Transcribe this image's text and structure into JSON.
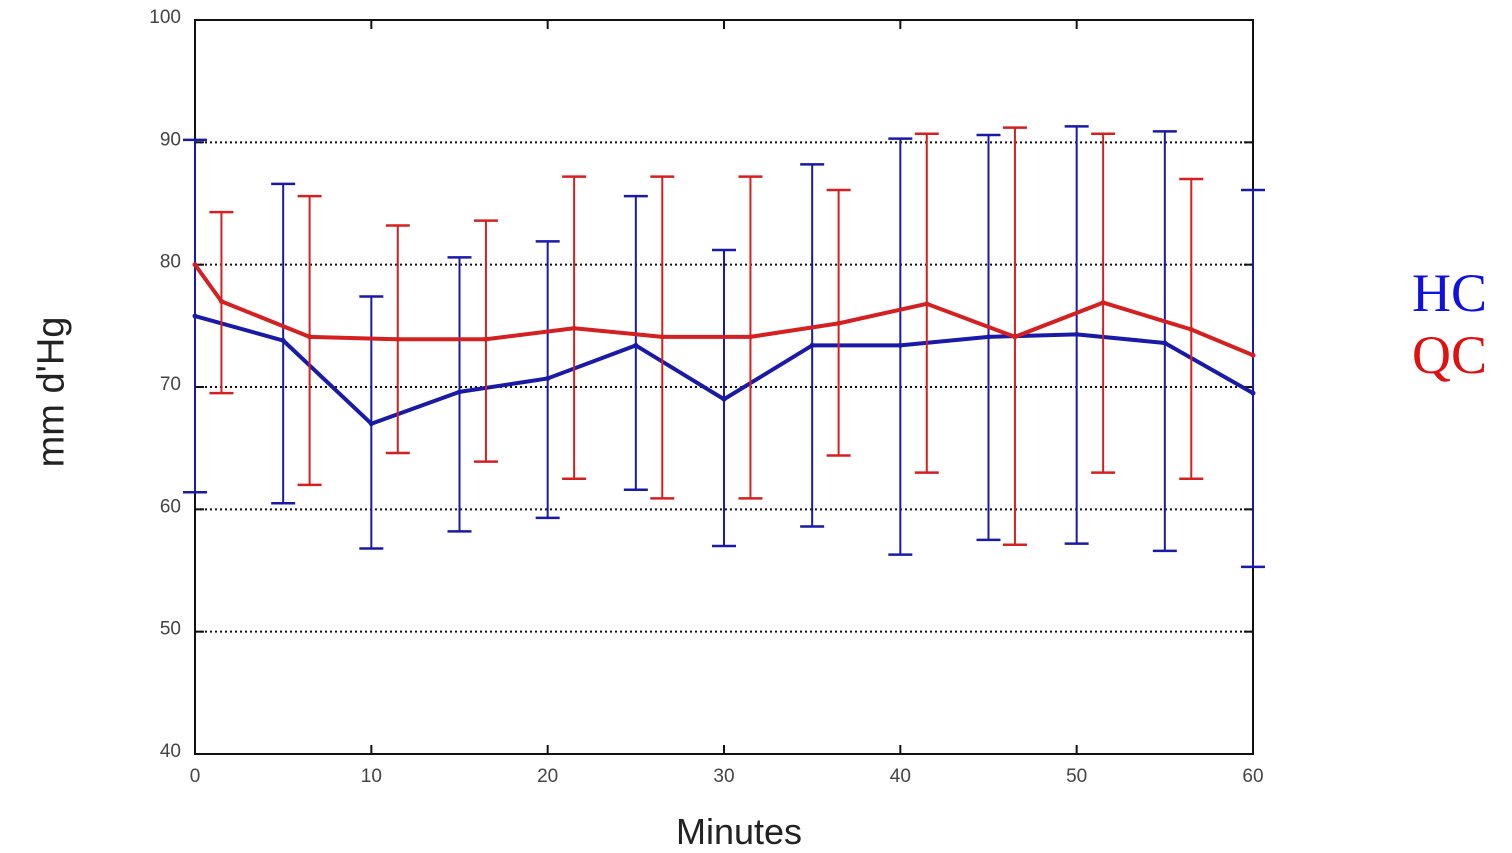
{
  "chart_data": {
    "type": "line",
    "xlabel": "Minutes",
    "ylabel": "mm d'Hg",
    "xlim": [
      0,
      60
    ],
    "ylim": [
      40,
      100
    ],
    "x_ticks": [
      "0",
      "10",
      "20",
      "30",
      "40",
      "50",
      "60"
    ],
    "y_ticks": [
      "40",
      "50",
      "60",
      "70",
      "80",
      "90",
      "100"
    ],
    "grid": "horizontal dotted at 50-90",
    "legend_position": "right",
    "series": [
      {
        "name": "HC",
        "color": "#1a1aa8",
        "x": [
          0,
          5,
          10,
          15,
          20,
          25,
          30,
          35,
          40,
          45,
          50,
          55,
          60
        ],
        "values": [
          75.8,
          73.8,
          67,
          69.6,
          70.7,
          73.4,
          69,
          73.4,
          73.4,
          74.1,
          74.3,
          73.6,
          69.5
        ],
        "error_low": [
          61.4,
          60.5,
          56.8,
          58.2,
          59.3,
          61.6,
          57,
          58.6,
          56.3,
          57.5,
          57.2,
          56.6,
          55.3
        ],
        "error_high": [
          90.2,
          86.6,
          77.4,
          80.6,
          81.9,
          85.6,
          81.2,
          88.2,
          90.3,
          90.6,
          91.3,
          90.9,
          86.1
        ]
      },
      {
        "name": "QC",
        "color": "#d42020",
        "x": [
          0,
          1.5,
          6.5,
          11.5,
          16.5,
          21.5,
          26.5,
          31.5,
          36.5,
          41.5,
          46.5,
          51.5,
          56.5,
          60
        ],
        "values": [
          80,
          77,
          74.1,
          73.9,
          73.9,
          74.8,
          74.1,
          74.1,
          75.2,
          76.8,
          74.1,
          76.9,
          74.7,
          72.6
        ],
        "error_low": [
          null,
          69.5,
          62,
          64.6,
          63.9,
          62.5,
          60.9,
          60.9,
          64.4,
          63,
          57.1,
          63,
          62.5,
          null
        ],
        "error_high": [
          null,
          84.3,
          85.6,
          83.2,
          83.6,
          87.2,
          87.2,
          87.2,
          86.1,
          90.7,
          91.2,
          90.7,
          87,
          null
        ]
      }
    ]
  }
}
